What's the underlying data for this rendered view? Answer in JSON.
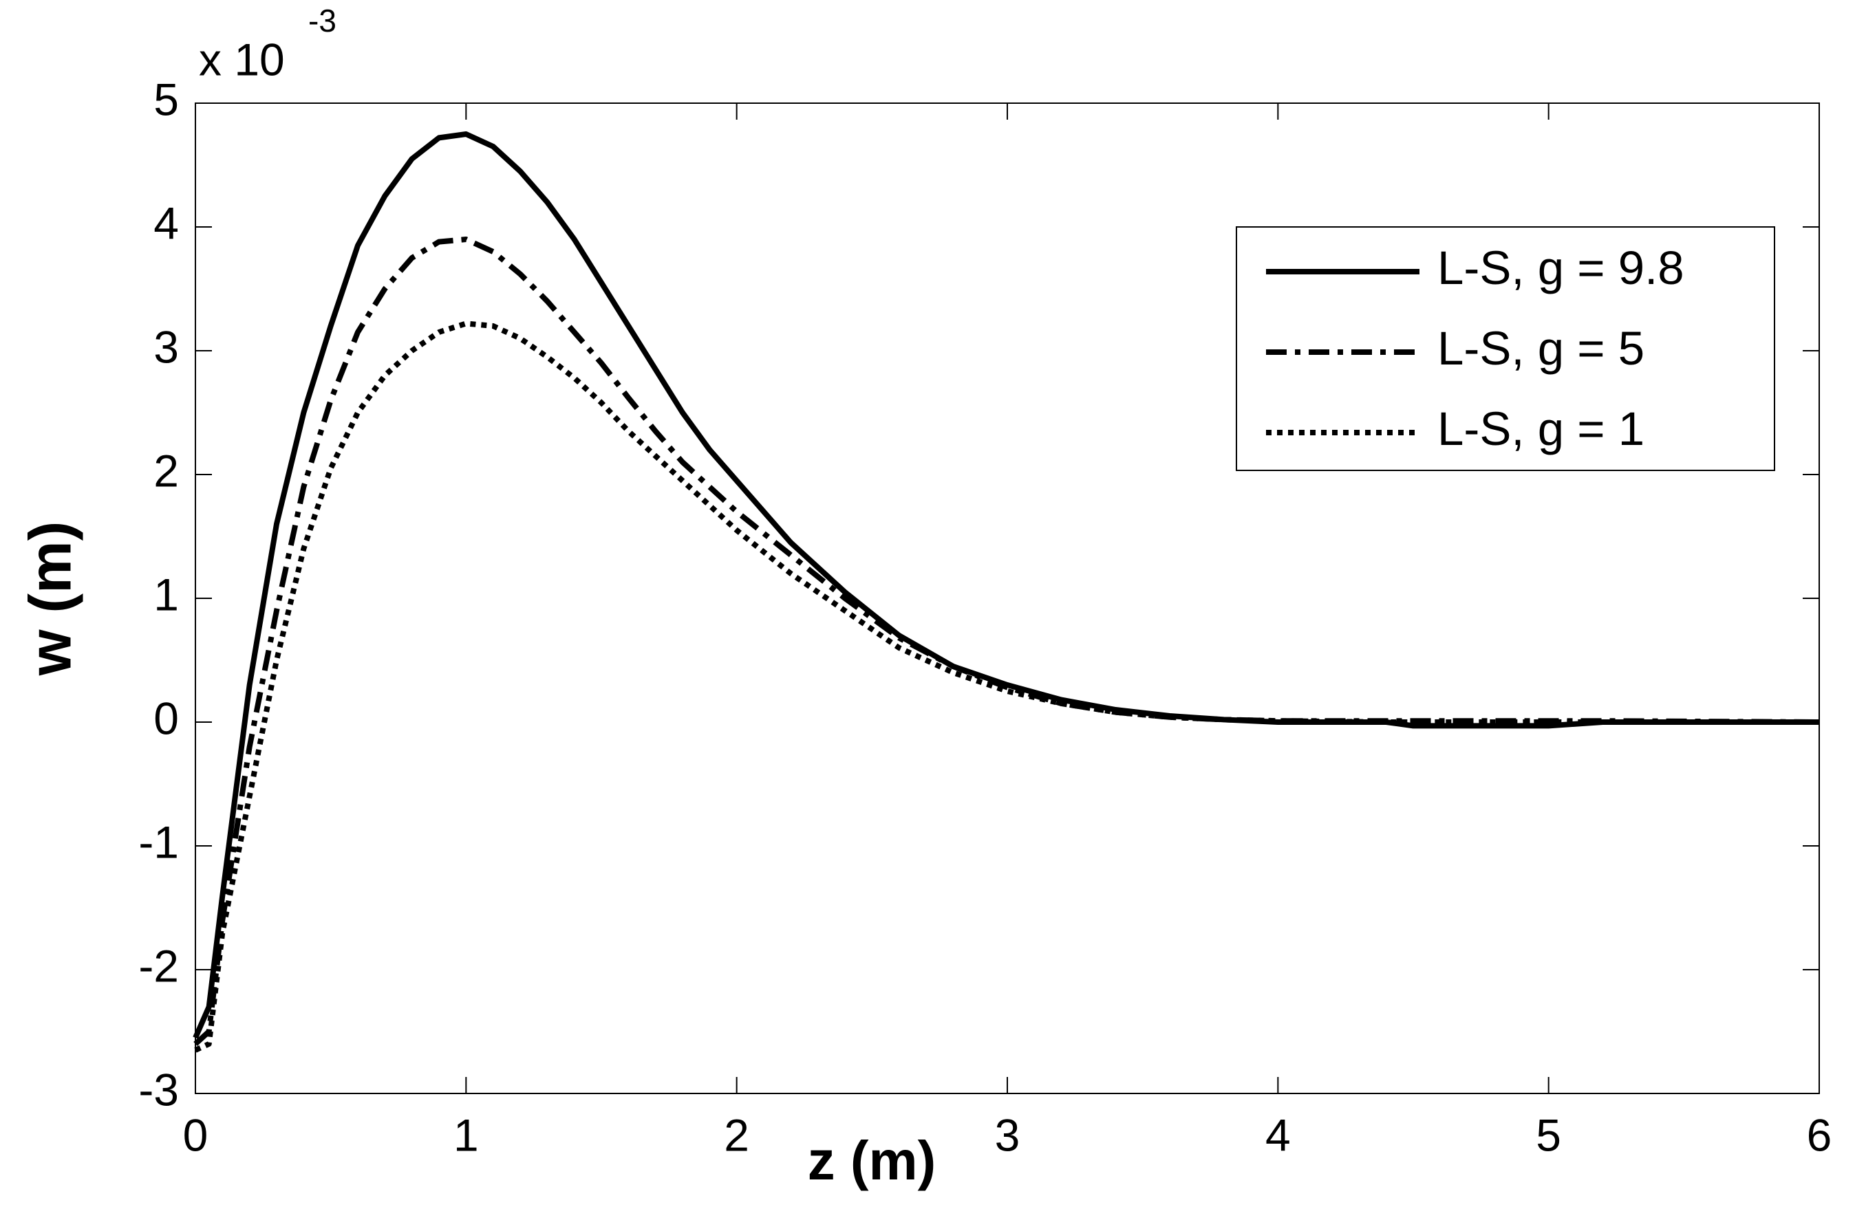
{
  "chart_data": {
    "type": "line",
    "y_multiplier": "x 10",
    "y_multiplier_exponent": "-3",
    "xlabel": "z (m)",
    "ylabel": "w (m)",
    "x": [
      0,
      0.05,
      0.1,
      0.2,
      0.3,
      0.4,
      0.5,
      0.6,
      0.7,
      0.8,
      0.9,
      1.0,
      1.1,
      1.2,
      1.3,
      1.4,
      1.5,
      1.6,
      1.7,
      1.8,
      1.9,
      2.0,
      2.2,
      2.4,
      2.6,
      2.8,
      3.0,
      3.2,
      3.4,
      3.6,
      3.8,
      4.0,
      4.4,
      4.5,
      5.0,
      5.2,
      6.0
    ],
    "series": [
      {
        "name": "L-S, g = 9.8",
        "color": "#000000",
        "dash": "solid",
        "values": [
          -2.55,
          -2.3,
          -1.4,
          0.3,
          1.6,
          2.5,
          3.2,
          3.85,
          4.25,
          4.55,
          4.72,
          4.75,
          4.65,
          4.45,
          4.2,
          3.9,
          3.55,
          3.2,
          2.85,
          2.5,
          2.2,
          1.95,
          1.45,
          1.05,
          0.7,
          0.45,
          0.3,
          0.18,
          0.1,
          0.05,
          0.02,
          0,
          0,
          -0.03,
          -0.03,
          0,
          0
        ]
      },
      {
        "name": "L-S, g = 5",
        "color": "#000000",
        "dash": "dashdot",
        "values": [
          -2.6,
          -2.5,
          -1.6,
          -0.2,
          0.9,
          1.9,
          2.6,
          3.15,
          3.5,
          3.75,
          3.88,
          3.9,
          3.8,
          3.62,
          3.4,
          3.15,
          2.9,
          2.62,
          2.35,
          2.1,
          1.9,
          1.7,
          1.35,
          1.0,
          0.68,
          0.45,
          0.28,
          0.15,
          0.08,
          0.04,
          0.02,
          0.01,
          0.01,
          0.01,
          0.01,
          0.01,
          0
        ]
      },
      {
        "name": "L-S, g = 1",
        "color": "#000000",
        "dash": "dotted",
        "values": [
          -2.65,
          -2.6,
          -1.7,
          -0.6,
          0.5,
          1.4,
          2.05,
          2.5,
          2.8,
          3.0,
          3.15,
          3.22,
          3.2,
          3.1,
          2.95,
          2.78,
          2.58,
          2.35,
          2.15,
          1.95,
          1.75,
          1.55,
          1.2,
          0.9,
          0.6,
          0.4,
          0.25,
          0.15,
          0.08,
          0.04,
          0.02,
          0.01,
          0,
          0,
          0,
          0,
          0
        ]
      }
    ],
    "xlim": [
      0,
      6
    ],
    "xticks": [
      0,
      1,
      2,
      3,
      4,
      5,
      6
    ],
    "ylim": [
      -3,
      5
    ],
    "yticks": [
      -3,
      -2,
      -1,
      0,
      1,
      2,
      3,
      4,
      5
    ],
    "grid": false,
    "legend": "upper right"
  }
}
